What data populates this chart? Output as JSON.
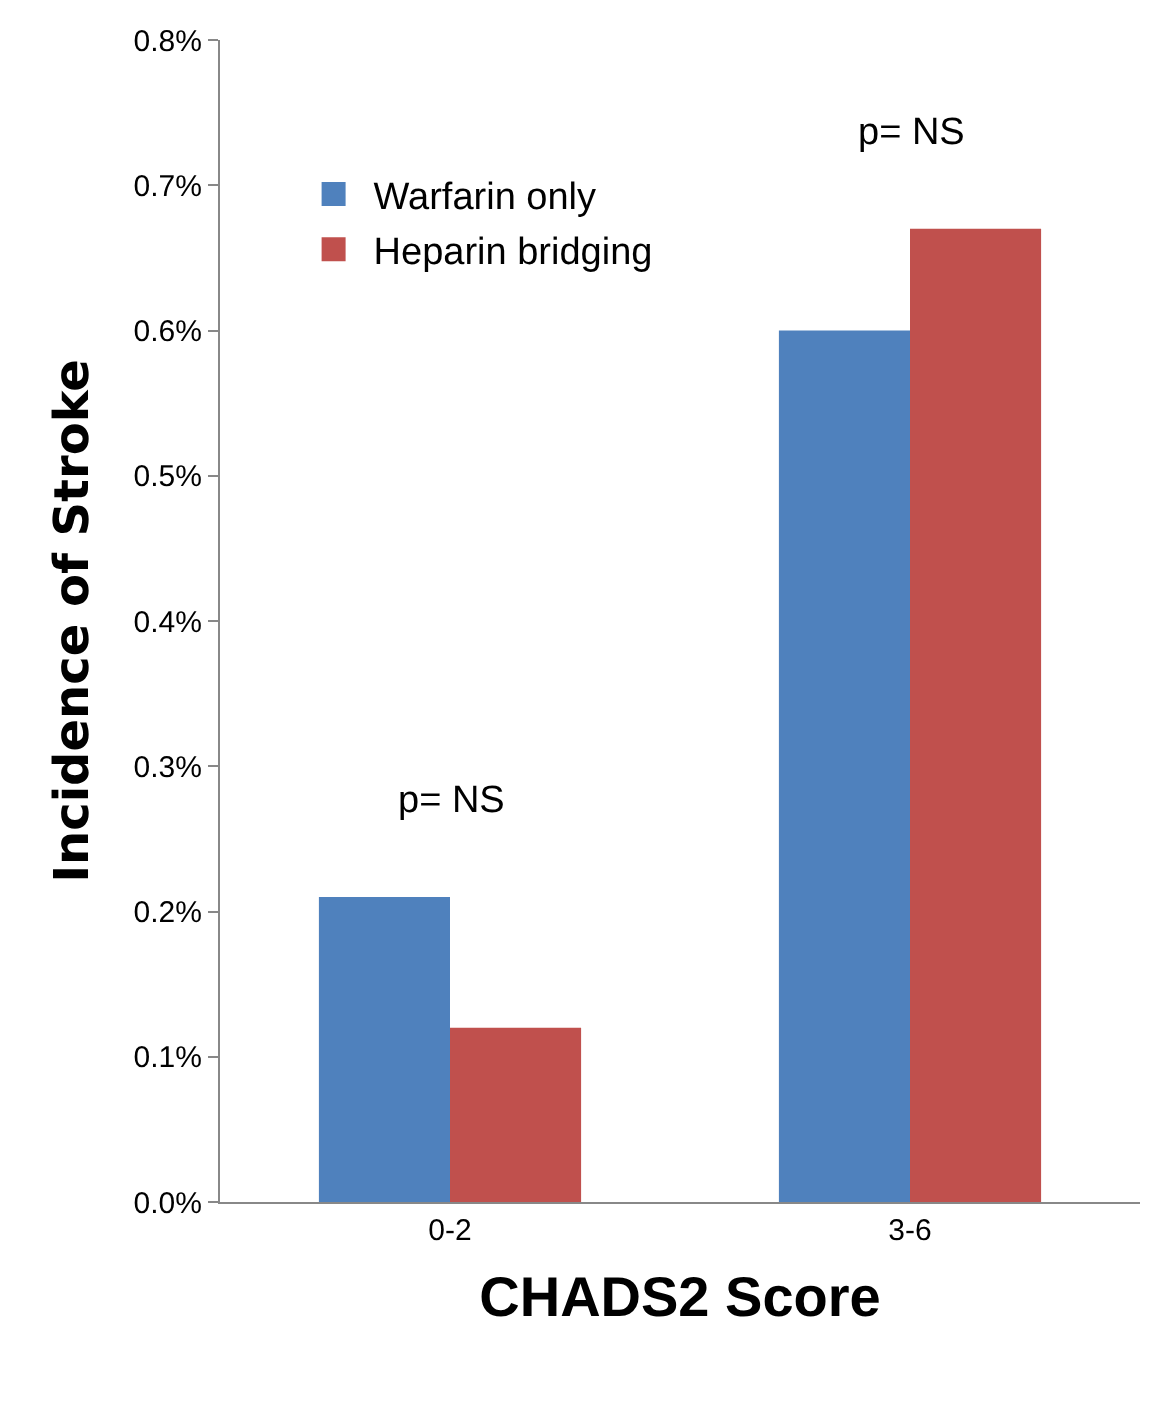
{
  "chart_data": {
    "type": "bar",
    "xlabel": "CHADS2 Score",
    "ylabel": "Incidence of Stroke",
    "categories": [
      "0-2",
      "3-6"
    ],
    "series": [
      {
        "name": "Warfarin only",
        "color": "#4f81bd",
        "values": [
          0.21,
          0.6
        ]
      },
      {
        "name": "Heparin bridging",
        "color": "#c0504d",
        "values": [
          0.12,
          0.67
        ]
      }
    ],
    "ylim": [
      0,
      0.8
    ],
    "yticks": [
      {
        "value": 0,
        "label": "0.0%"
      },
      {
        "value": 0.1,
        "label": "0.1%"
      },
      {
        "value": 0.2,
        "label": "0.2%"
      },
      {
        "value": 0.3,
        "label": "0.3%"
      },
      {
        "value": 0.4,
        "label": "0.4%"
      },
      {
        "value": 0.5,
        "label": "0.5%"
      },
      {
        "value": 0.6,
        "label": "0.6%"
      },
      {
        "value": 0.7,
        "label": "0.7%"
      },
      {
        "value": 0.8,
        "label": "0.8%"
      }
    ],
    "annotations": [
      "p= NS",
      "p= NS"
    ],
    "legend": "top left"
  }
}
